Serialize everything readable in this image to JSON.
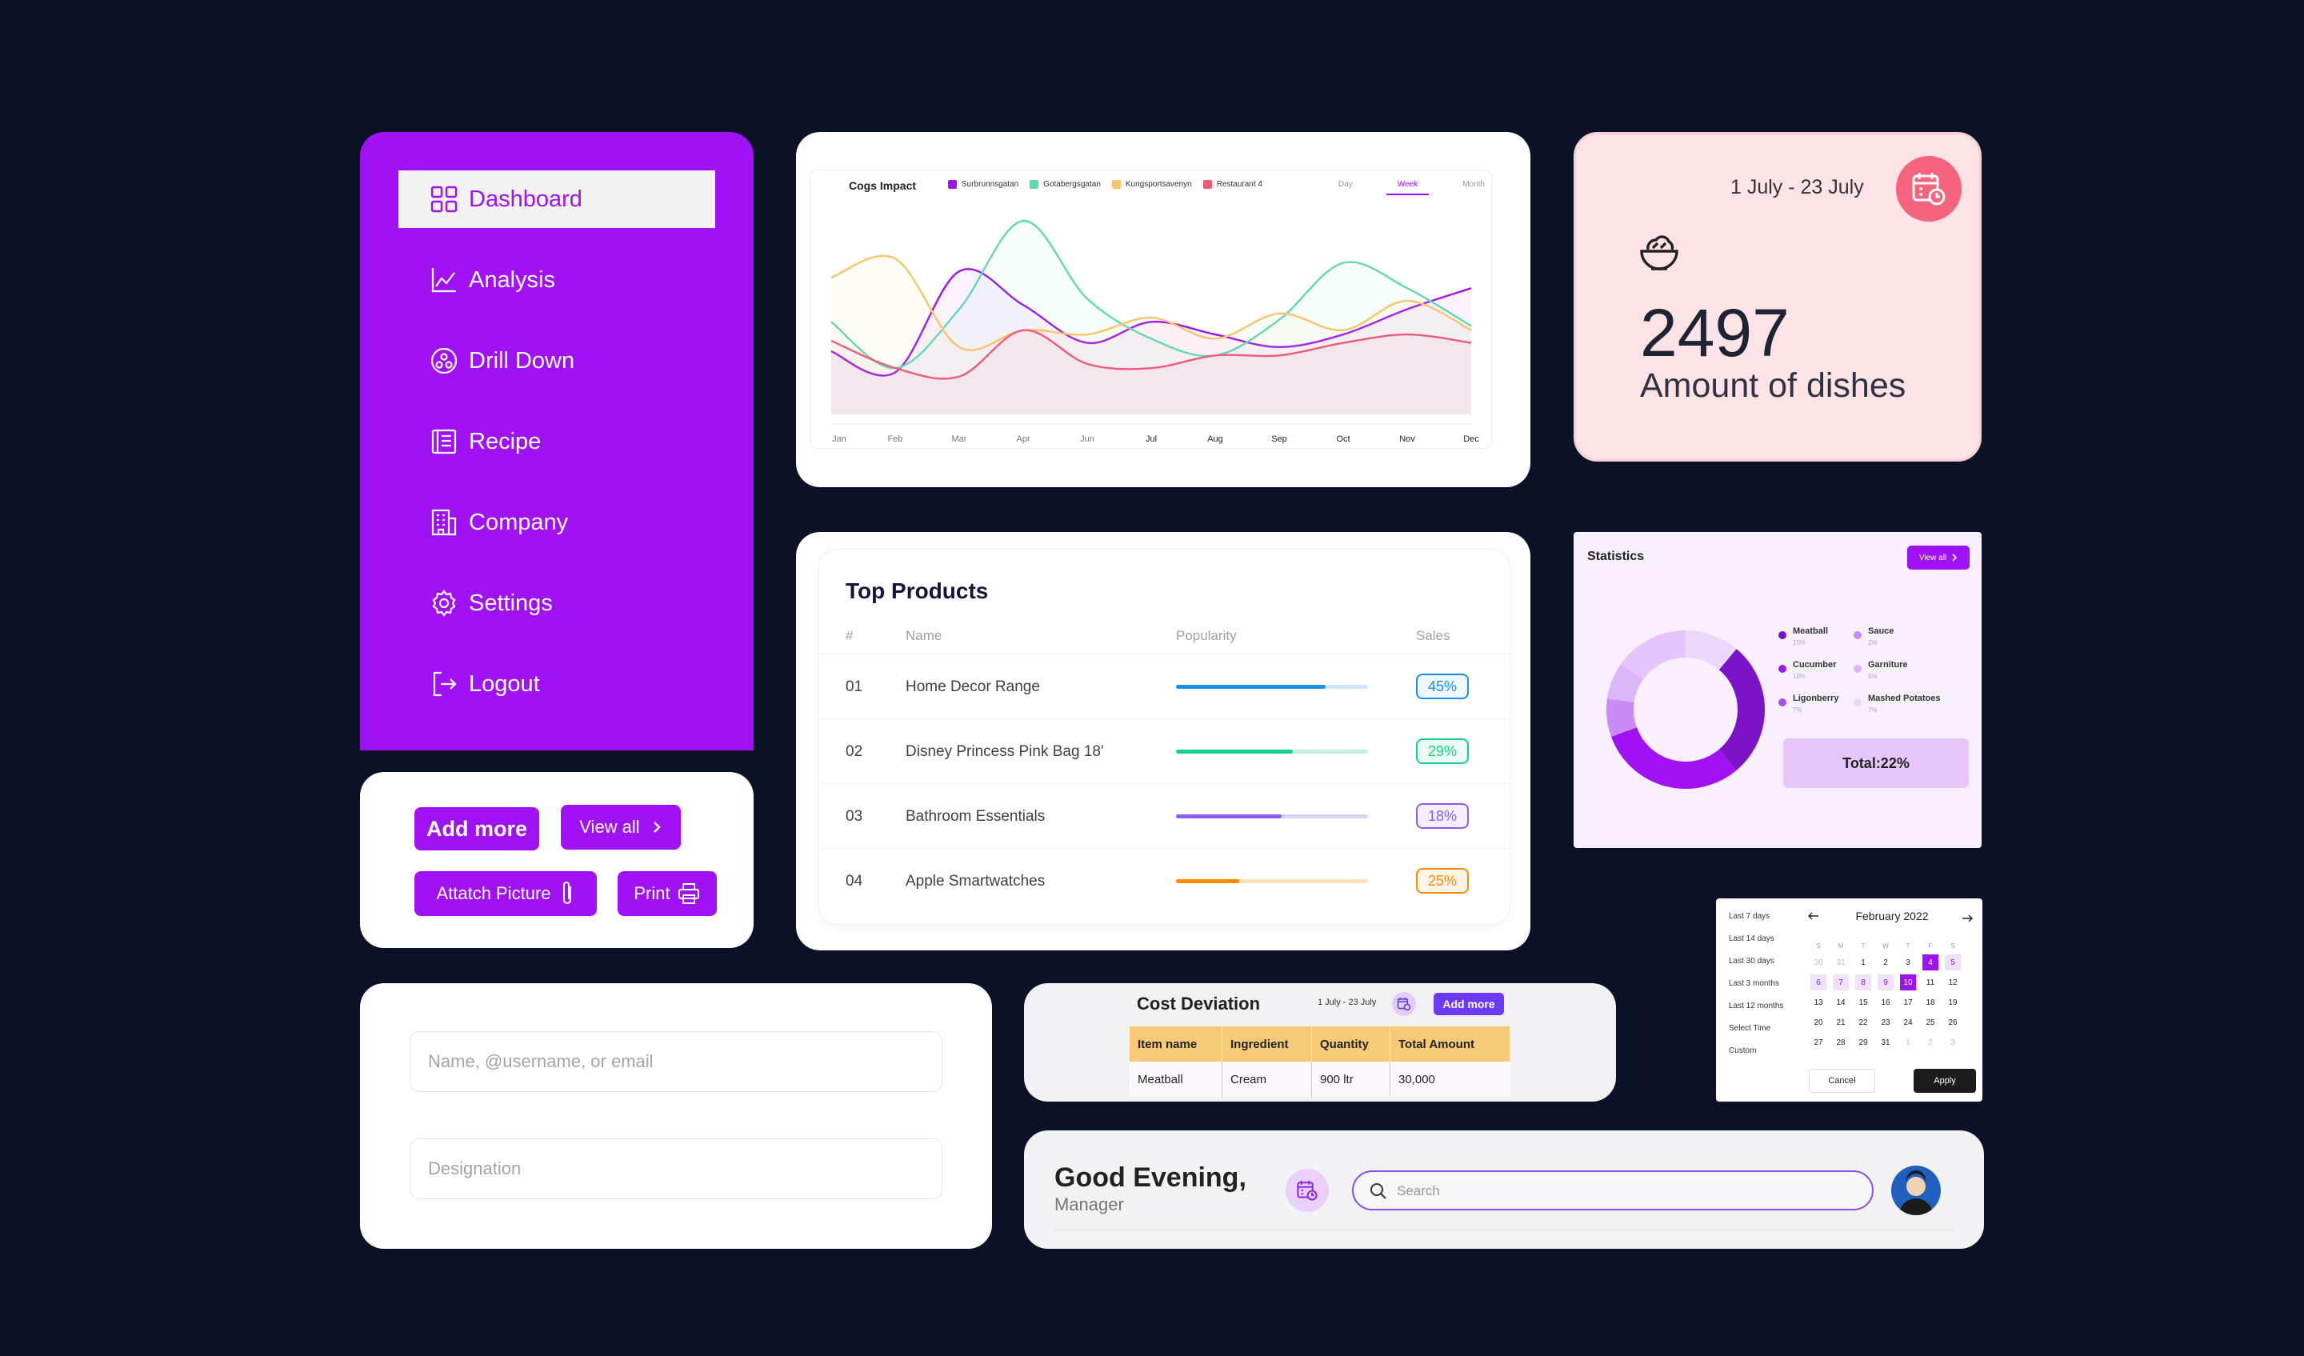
{
  "sidebar": {
    "items": [
      {
        "label": "Dashboard",
        "icon": "grid-icon",
        "active": true
      },
      {
        "label": "Analysis",
        "icon": "chart-line-icon"
      },
      {
        "label": "Drill Down",
        "icon": "drill-down-icon"
      },
      {
        "label": "Recipe",
        "icon": "book-icon"
      },
      {
        "label": "Company",
        "icon": "building-icon"
      },
      {
        "label": "Settings",
        "icon": "gear-icon"
      },
      {
        "label": "Logout",
        "icon": "logout-icon"
      }
    ]
  },
  "buttons": {
    "add_more": "Add more",
    "view_all": "View all",
    "attach_picture": "Attatch Picture",
    "print": "Print"
  },
  "chart_data": {
    "type": "line",
    "title": "Cogs Impact",
    "categories": [
      "Jan",
      "Feb",
      "Mar",
      "Apr",
      "Jun",
      "Jul",
      "Aug",
      "Sep",
      "Oct",
      "Nov",
      "Dec"
    ],
    "series": [
      {
        "name": "Surbrunnsgatan",
        "color": "#a012f5",
        "values": [
          30,
          20,
          68,
          52,
          34,
          44,
          38,
          32,
          38,
          50,
          60
        ]
      },
      {
        "name": "Gotabergsgatan",
        "color": "#5fd9b4",
        "values": [
          44,
          22,
          50,
          92,
          55,
          36,
          28,
          45,
          72,
          60,
          42
        ]
      },
      {
        "name": "Kungsportsavenyn",
        "color": "#f7c46a",
        "values": [
          65,
          74,
          32,
          40,
          38,
          46,
          36,
          48,
          40,
          54,
          40
        ]
      },
      {
        "name": "Restaurant 4",
        "color": "#f05a7a",
        "values": [
          35,
          22,
          18,
          40,
          24,
          22,
          28,
          28,
          34,
          38,
          34
        ]
      }
    ],
    "ylim": [
      0,
      100
    ],
    "range_tabs": [
      "Day",
      "Week",
      "Month"
    ],
    "active_range": "Week"
  },
  "dishes": {
    "date_range": "1 July - 23 July",
    "value": "2497",
    "label": "Amount of dishes"
  },
  "top_products": {
    "title": "Top Products",
    "headers": [
      "#",
      "Name",
      "Popularity",
      "Sales"
    ],
    "rows": [
      {
        "id": "01",
        "name": "Home Decor Range",
        "popularity": 0.78,
        "sales": "45%",
        "color": "#1a8ff0",
        "track": "#cfe6fb"
      },
      {
        "id": "02",
        "name": "Disney Princess Pink Bag 18'",
        "popularity": 0.61,
        "sales": "29%",
        "color": "#12d18e",
        "track": "#c4f2df"
      },
      {
        "id": "03",
        "name": "Bathroom Essentials",
        "popularity": 0.55,
        "sales": "18%",
        "color": "#8b5cf6",
        "track": "#ddd0fb"
      },
      {
        "id": "04",
        "name": "Apple Smartwatches",
        "popularity": 0.33,
        "sales": "25%",
        "color": "#ff8a00",
        "track": "#ffe0b8"
      }
    ]
  },
  "statistics": {
    "title": "Statistics",
    "view_all": "View all",
    "legend": [
      {
        "name": "Meatball",
        "pct": "15%",
        "color": "#7b14c9"
      },
      {
        "name": "Sauce",
        "pct": "2%",
        "color": "#c98af5"
      },
      {
        "name": "Cucumber",
        "pct": "18%",
        "color": "#9a1df0"
      },
      {
        "name": "Garniture",
        "pct": "5%",
        "color": "#dcb5f8"
      },
      {
        "name": "Ligonberry",
        "pct": "7%",
        "color": "#a64df3"
      },
      {
        "name": "Mashed Potatoes",
        "pct": "7%",
        "color": "#ecd6fb"
      }
    ],
    "total": "Total:22%"
  },
  "calendar": {
    "presets": [
      "Last 7 days",
      "Last 14 days",
      "Last 30 days",
      "Last 3 months",
      "Last 12 months",
      "Select Time",
      "Custom"
    ],
    "month": "February 2022",
    "weekdays": [
      "S",
      "M",
      "T",
      "W",
      "T",
      "F",
      "S"
    ],
    "weeks": [
      [
        "30",
        "31",
        "1",
        "2",
        "3",
        "4",
        "5"
      ],
      [
        "6",
        "7",
        "8",
        "9",
        "10",
        "11",
        "12"
      ],
      [
        "13",
        "14",
        "15",
        "16",
        "17",
        "18",
        "19"
      ],
      [
        "20",
        "21",
        "22",
        "23",
        "24",
        "25",
        "26"
      ],
      [
        "27",
        "28",
        "29",
        "31",
        "1",
        "2",
        "3"
      ]
    ],
    "cancel": "Cancel",
    "apply": "Apply"
  },
  "form": {
    "name_placeholder": "Name, @username, or email",
    "designation_placeholder": "Designation"
  },
  "cost_deviation": {
    "title": "Cost Deviation",
    "date_range": "1 July - 23 July",
    "add_more": "Add more",
    "headers": [
      "Item name",
      "Ingredient",
      "Quantity",
      "Total Amount"
    ],
    "row": [
      "Meatball",
      "Cream",
      "900 ltr",
      "30,000"
    ]
  },
  "greeting": {
    "title": "Good Evening,",
    "subtitle": "Manager",
    "search_placeholder": "Search"
  },
  "colors": {
    "background": "#0b1228",
    "accent": "#a012f5",
    "pink_card": "#fde3e6",
    "coral": "#f6637d"
  }
}
